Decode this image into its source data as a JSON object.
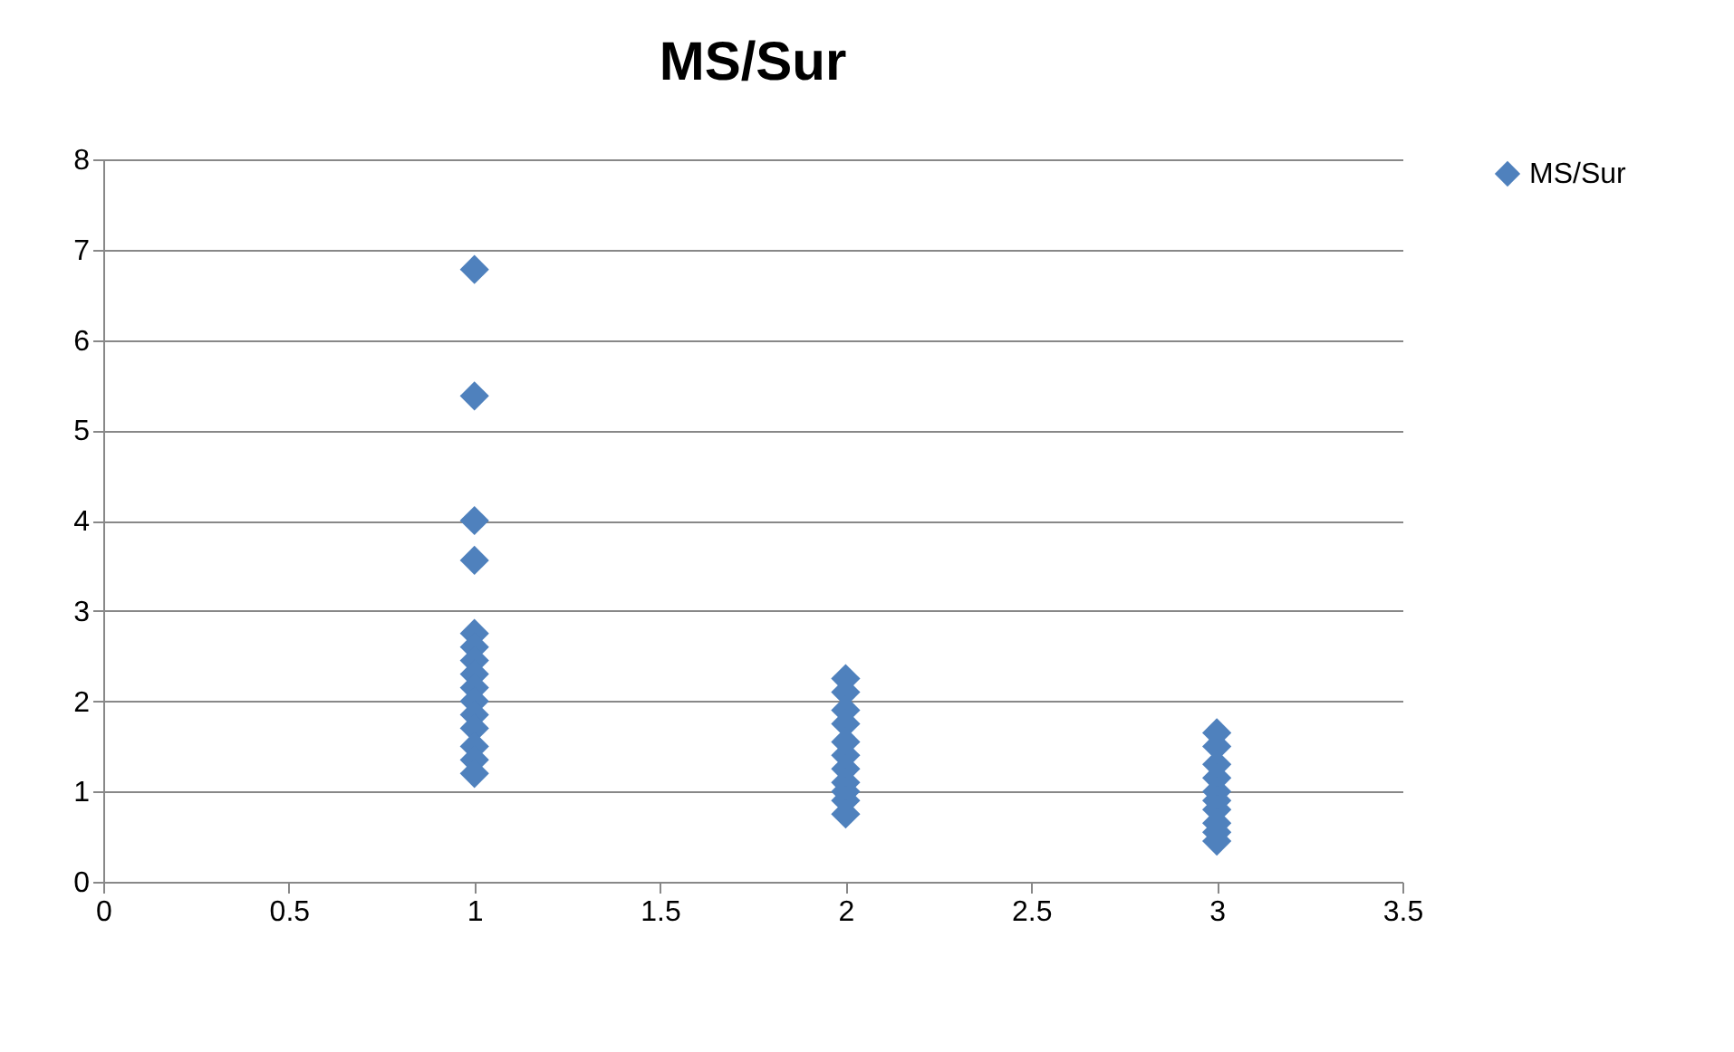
{
  "chart_data": {
    "type": "scatter",
    "title": "MS/Sur",
    "x": [
      1,
      1,
      1,
      1,
      1,
      1,
      1,
      1,
      1,
      1,
      1,
      1,
      1,
      1,
      1,
      2,
      2,
      2,
      2,
      2,
      2,
      2,
      2,
      2,
      2,
      2,
      3,
      3,
      3,
      3,
      3,
      3,
      3,
      3,
      3,
      3
    ],
    "series": [
      {
        "name": "MS/Sur",
        "color": "#4f81bd",
        "values": [
          6.78,
          5.38,
          4.0,
          3.56,
          2.75,
          2.6,
          2.45,
          2.3,
          2.15,
          2.0,
          1.85,
          1.7,
          1.5,
          1.35,
          1.2,
          2.25,
          2.1,
          1.9,
          1.75,
          1.55,
          1.4,
          1.25,
          1.1,
          1.0,
          0.9,
          0.75,
          1.65,
          1.5,
          1.3,
          1.15,
          1.0,
          0.9,
          0.8,
          0.65,
          0.55,
          0.45
        ]
      }
    ],
    "xlim": [
      0,
      3.5
    ],
    "xticks": [
      0,
      0.5,
      1,
      1.5,
      2,
      2.5,
      3,
      3.5
    ],
    "ylim": [
      0,
      8
    ],
    "yticks": [
      0,
      1,
      2,
      3,
      4,
      5,
      6,
      7,
      8
    ],
    "grid": "y",
    "legend": "right",
    "marker": "diamond"
  }
}
